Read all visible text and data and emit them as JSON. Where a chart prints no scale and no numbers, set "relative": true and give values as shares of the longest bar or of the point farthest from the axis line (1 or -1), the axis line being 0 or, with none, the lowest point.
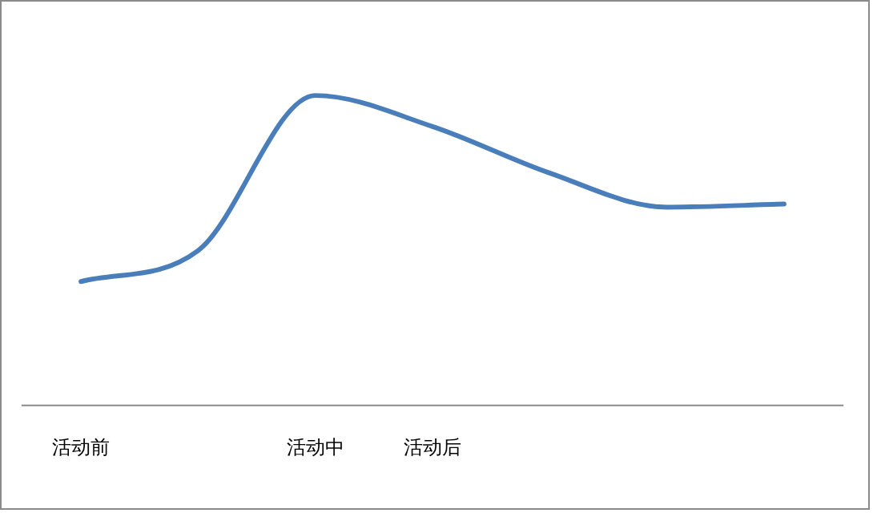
{
  "chart_data": {
    "type": "line",
    "relative": true,
    "categories": [
      "活动前",
      null,
      "活动中",
      "活动后",
      null,
      null,
      null
    ],
    "series": [
      {
        "color": "#4a7ebb",
        "values": [
          0.4,
          0.5,
          1,
          0.9,
          0.75,
          0.64,
          0.65
        ]
      }
    ],
    "grid": false,
    "legend": false,
    "marker": "none",
    "line_style": "solid"
  }
}
